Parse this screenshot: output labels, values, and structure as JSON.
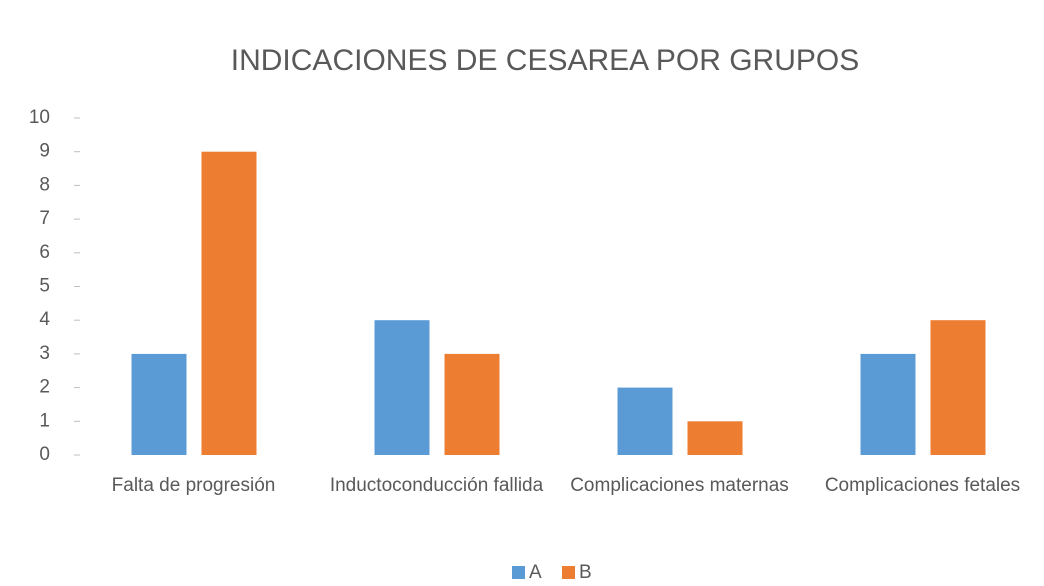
{
  "chart_data": {
    "type": "bar",
    "title": "INDICACIONES DE CESAREA POR GRUPOS",
    "categories": [
      "Falta de progresión",
      "Inductoconducción fallida",
      "Complicaciones maternas",
      "Complicaciones fetales"
    ],
    "series": [
      {
        "name": "A",
        "color": "#5b9bd5",
        "values": [
          3,
          4,
          2,
          3
        ]
      },
      {
        "name": "B",
        "color": "#ed7d31",
        "values": [
          9,
          3,
          1,
          4
        ]
      }
    ],
    "ylim": [
      0,
      10
    ],
    "yticks": [
      0,
      1,
      2,
      3,
      4,
      5,
      6,
      7,
      8,
      9,
      10
    ],
    "grid": false,
    "legend": "bottom"
  }
}
